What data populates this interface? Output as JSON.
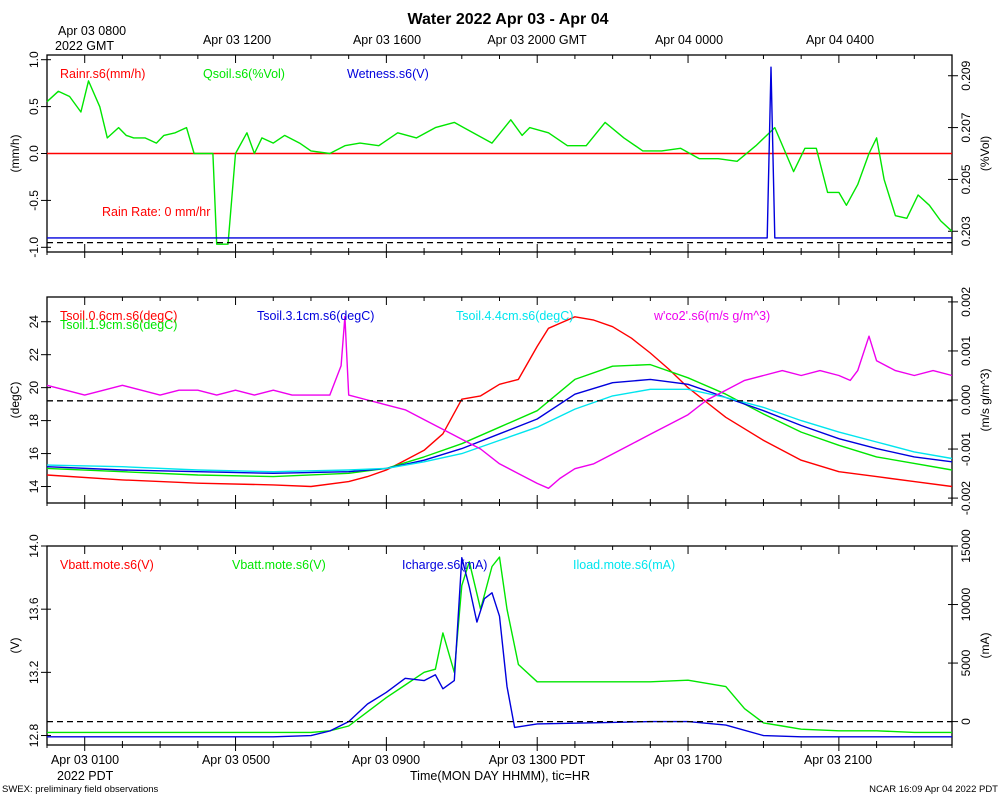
{
  "title": "Water 2022 Apr 03 - Apr 04",
  "top_axis": {
    "start_label_line1": "Apr 03 0800",
    "start_label_line2": "2022 GMT",
    "labels": [
      "Apr 03 1200",
      "Apr 03 1600",
      "Apr 03 2000 GMT",
      "Apr 04 0000",
      "Apr 04 0400"
    ]
  },
  "bottom_axis": {
    "labels": [
      "Apr 03 0100",
      "Apr 03 0500",
      "Apr 03 0900",
      "Apr 03 1300 PDT",
      "Apr 03 1700",
      "Apr 03 2100"
    ],
    "year_label": "2022 PDT",
    "xlabel": "Time(MON DAY HHMM), tic=HR"
  },
  "footer": {
    "left": "SWEX: preliminary field observations",
    "right": "NCAR 16:09 Apr 04 2022 PDT"
  },
  "colors": {
    "red": "#ff0000",
    "green": "#00e600",
    "blue": "#0000dd",
    "cyan": "#00e5ee",
    "magenta": "#ee00ee",
    "black": "#000000"
  },
  "chart_data": [
    {
      "type": "line",
      "panel": "water",
      "x_units": "hours since Apr 03 0000 PDT",
      "xlim": [
        0,
        24
      ],
      "ylabel_left": "(mm/h)",
      "ylabel_right": "(%Vol)",
      "ylim_left": [
        -1.05,
        1.05
      ],
      "ylim_right": [
        0.2022,
        0.2098
      ],
      "yticks_left": [
        "1.0",
        "0.5",
        "0.0",
        "-0.5",
        "-1.0"
      ],
      "yticks_left_values": [
        1.0,
        0.5,
        0.0,
        -0.5,
        -1.0
      ],
      "yticks_right": [
        "0.209",
        "0.207",
        "0.205",
        "0.203"
      ],
      "yticks_right_values": [
        0.209,
        0.207,
        0.205,
        0.203
      ],
      "legend": [
        "Rainr.s6(mm/h)",
        "Qsoil.s6(%Vol)",
        "Wetness.s6(V)"
      ],
      "annotation": "Rain Rate: 0 mm/hr",
      "series": [
        {
          "name": "Rainr.s6(mm/h)",
          "color": "red",
          "axis": "left",
          "x": [
            0,
            24
          ],
          "y": [
            0,
            0
          ]
        },
        {
          "name": "Qsoil.s6(%Vol)",
          "color": "green",
          "axis": "right",
          "x": [
            0.0,
            0.3,
            0.6,
            0.9,
            1.1,
            1.4,
            1.6,
            1.9,
            2.1,
            2.3,
            2.6,
            2.9,
            3.1,
            3.4,
            3.7,
            3.9,
            4.4,
            4.5,
            4.7,
            4.8,
            5.0,
            5.3,
            5.5,
            5.7,
            6.0,
            6.3,
            6.7,
            7.0,
            7.5,
            7.9,
            8.3,
            8.8,
            9.3,
            9.8,
            10.3,
            10.8,
            11.3,
            11.8,
            12.3,
            12.6,
            12.8,
            13.3,
            13.8,
            14.3,
            14.8,
            15.3,
            15.8,
            16.3,
            16.8,
            17.3,
            17.8,
            18.3,
            18.8,
            19.3,
            19.8,
            20.1,
            20.4,
            20.7,
            21.0,
            21.2,
            21.5,
            21.8,
            22.0,
            22.2,
            22.5,
            22.8,
            23.1,
            23.4,
            23.7,
            24.0
          ],
          "y": [
            0.208,
            0.2084,
            0.2082,
            0.2076,
            0.2088,
            0.2078,
            0.2066,
            0.207,
            0.2067,
            0.2066,
            0.2066,
            0.2064,
            0.2067,
            0.2068,
            0.207,
            0.206,
            0.206,
            0.2025,
            0.2025,
            0.2025,
            0.206,
            0.2068,
            0.206,
            0.2066,
            0.2064,
            0.2067,
            0.2064,
            0.2061,
            0.206,
            0.2063,
            0.2064,
            0.2063,
            0.2068,
            0.2066,
            0.207,
            0.2072,
            0.2068,
            0.2064,
            0.2073,
            0.2067,
            0.207,
            0.2068,
            0.2063,
            0.2063,
            0.2072,
            0.2066,
            0.2061,
            0.2061,
            0.2062,
            0.2058,
            0.2058,
            0.2057,
            0.2063,
            0.207,
            0.2053,
            0.2062,
            0.2062,
            0.2045,
            0.2045,
            0.204,
            0.2048,
            0.206,
            0.2066,
            0.205,
            0.2036,
            0.2035,
            0.2044,
            0.204,
            0.2034,
            0.203
          ]
        },
        {
          "name": "Wetness.s6(V)",
          "color": "blue",
          "axis": "left",
          "x": [
            0,
            19.0,
            19.1,
            19.2,
            19.3,
            19.4,
            24
          ],
          "y": [
            -0.9,
            -0.9,
            -0.9,
            0.92,
            -0.9,
            -0.9,
            -0.9
          ]
        }
      ],
      "reference_lines": [
        {
          "axis": "left",
          "y": -0.95,
          "style": "dashed"
        }
      ]
    },
    {
      "type": "line",
      "panel": "soil temperature",
      "x_units": "hours since Apr 03 0000 PDT",
      "xlim": [
        0,
        24
      ],
      "ylabel_left": "(degC)",
      "ylabel_right": "(m/s g/m^3)",
      "ylim_left": [
        13.0,
        25.5
      ],
      "ylim_right": [
        -0.0021,
        0.0021
      ],
      "yticks_left": [
        "24",
        "22",
        "20",
        "18",
        "16",
        "14"
      ],
      "yticks_left_values": [
        24,
        22,
        20,
        18,
        16,
        14
      ],
      "yticks_right": [
        "0.002",
        "0.001",
        "0.000",
        "-0.001",
        "-0.002"
      ],
      "yticks_right_values": [
        0.002,
        0.001,
        0.0,
        -0.001,
        -0.002
      ],
      "legend": [
        "Tsoil.0.6cm.s6(degC)",
        "Tsoil.1.9cm.s6(degC)",
        "Tsoil.3.1cm.s6(degC)",
        "Tsoil.4.4cm.s6(degC)",
        "w'co2'.s6(m/s g/m^3)"
      ],
      "series": [
        {
          "name": "Tsoil.0.6cm.s6(degC)",
          "color": "red",
          "axis": "left",
          "x": [
            0,
            2,
            4,
            6,
            7,
            8,
            8.5,
            9,
            9.5,
            10,
            10.5,
            11,
            11.5,
            12,
            12.5,
            13,
            13.3,
            13.6,
            14,
            14.5,
            15,
            15.5,
            16,
            16.5,
            17,
            17.5,
            18,
            19,
            20,
            21,
            22,
            23,
            24
          ],
          "y": [
            14.7,
            14.4,
            14.2,
            14.1,
            14.0,
            14.3,
            14.6,
            15.0,
            15.6,
            16.2,
            17.2,
            19.3,
            19.5,
            20.2,
            20.5,
            22.5,
            23.6,
            23.9,
            24.3,
            24.1,
            23.7,
            23.0,
            22.1,
            21.1,
            20.0,
            19.1,
            18.2,
            16.8,
            15.6,
            14.9,
            14.6,
            14.3,
            14.0
          ]
        },
        {
          "name": "Tsoil.1.9cm.s6(degC)",
          "color": "green",
          "axis": "left",
          "x": [
            0,
            2,
            4,
            6,
            8,
            9,
            10,
            11,
            12,
            13,
            14,
            15,
            16,
            17,
            18,
            19,
            20,
            21,
            22,
            23,
            24
          ],
          "y": [
            15.1,
            14.9,
            14.7,
            14.6,
            14.8,
            15.1,
            15.8,
            16.6,
            17.6,
            18.6,
            20.5,
            21.3,
            21.4,
            20.6,
            19.6,
            18.4,
            17.3,
            16.5,
            15.8,
            15.4,
            15.0
          ]
        },
        {
          "name": "Tsoil.3.1cm.s6(degC)",
          "color": "blue",
          "axis": "left",
          "x": [
            0,
            2,
            4,
            6,
            8,
            9,
            10,
            11,
            12,
            13,
            14,
            15,
            16,
            17,
            18,
            19,
            20,
            21,
            22,
            23,
            24
          ],
          "y": [
            15.2,
            15.0,
            14.9,
            14.8,
            14.9,
            15.1,
            15.6,
            16.3,
            17.2,
            18.1,
            19.6,
            20.3,
            20.5,
            20.2,
            19.4,
            18.6,
            17.7,
            16.9,
            16.3,
            15.8,
            15.5
          ]
        },
        {
          "name": "Tsoil.4.4cm.s6(degC)",
          "color": "cyan",
          "axis": "left",
          "x": [
            0,
            2,
            4,
            6,
            8,
            9,
            10,
            11,
            12,
            13,
            14,
            15,
            16,
            17,
            18,
            19,
            20,
            21,
            22,
            23,
            24
          ],
          "y": [
            15.3,
            15.2,
            15.0,
            14.9,
            15.0,
            15.1,
            15.5,
            16.0,
            16.8,
            17.6,
            18.7,
            19.5,
            19.9,
            19.9,
            19.4,
            18.8,
            18.0,
            17.3,
            16.7,
            16.1,
            15.7
          ]
        },
        {
          "name": "w'co2'.s6(m/s g/m^3)",
          "color": "magenta",
          "axis": "right",
          "x": [
            0,
            0.5,
            1,
            1.5,
            2,
            2.5,
            3,
            3.5,
            4,
            4.5,
            5,
            5.5,
            6,
            6.5,
            7,
            7.5,
            7.8,
            7.9,
            8.0,
            8.5,
            9,
            9.5,
            10,
            10.5,
            11,
            11.5,
            12,
            12.5,
            13,
            13.3,
            13.6,
            14,
            14.5,
            15,
            15.5,
            16,
            16.5,
            17,
            17.5,
            18,
            18.5,
            19,
            19.5,
            20,
            20.5,
            21,
            21.3,
            21.5,
            21.8,
            22,
            22.5,
            23,
            23.5,
            24
          ],
          "y": [
            0.0003,
            0.0002,
            0.0001,
            0.0002,
            0.0003,
            0.0002,
            0.0001,
            0.0002,
            0.0002,
            0.0001,
            0.0002,
            0.0001,
            0.0002,
            0.0001,
            0.0001,
            0.0001,
            0.0007,
            0.0017,
            0.0001,
            0.0,
            -0.0001,
            -0.0002,
            -0.0004,
            -0.0006,
            -0.0008,
            -0.001,
            -0.0013,
            -0.0015,
            -0.0017,
            -0.0018,
            -0.0016,
            -0.0014,
            -0.0013,
            -0.0011,
            -0.0009,
            -0.0007,
            -0.0005,
            -0.0003,
            0.0,
            0.0002,
            0.0004,
            0.0005,
            0.0006,
            0.0005,
            0.0006,
            0.0005,
            0.0004,
            0.0006,
            0.0013,
            0.0008,
            0.0006,
            0.0005,
            0.0006,
            0.0005
          ]
        }
      ],
      "reference_lines": [
        {
          "axis": "left",
          "y": 19.2,
          "style": "dashed"
        }
      ]
    },
    {
      "type": "line",
      "panel": "power",
      "x_units": "hours since Apr 03 0000 PDT",
      "xlim": [
        0,
        24
      ],
      "ylabel_left": "(V)",
      "ylabel_right": "(mA)",
      "ylim_left": [
        12.74,
        14.0
      ],
      "ylim_right": [
        -2000,
        15000
      ],
      "yticks_left": [
        "14.0",
        "13.6",
        "13.2",
        "12.8"
      ],
      "yticks_left_values": [
        14.0,
        13.6,
        13.2,
        12.8
      ],
      "yticks_right": [
        "15000",
        "10000",
        "5000",
        "0"
      ],
      "yticks_right_values": [
        15000,
        10000,
        5000,
        0
      ],
      "legend": [
        "Vbatt.mote.s6(V)",
        "Vbatt.mote.s6(V)",
        "Icharge.s6(mA)",
        "Iload.mote.s6(mA)"
      ],
      "series": [
        {
          "name": "Vbatt.mote.s6(V)",
          "color": "red",
          "axis": "left",
          "x": [],
          "y": []
        },
        {
          "name": "Vbatt.mote.s6(V)",
          "color": "green",
          "axis": "left",
          "x": [
            0,
            2,
            4,
            6,
            7,
            7.5,
            8,
            8.5,
            9,
            9.5,
            10,
            10.3,
            10.5,
            10.8,
            11,
            11.2,
            11.5,
            11.8,
            12,
            12.2,
            12.5,
            13,
            14,
            15,
            16,
            17,
            18,
            18.5,
            19,
            19.5,
            20,
            21,
            22,
            23,
            24
          ],
          "y": [
            12.82,
            12.82,
            12.82,
            12.82,
            12.82,
            12.83,
            12.86,
            12.95,
            13.04,
            13.12,
            13.2,
            13.22,
            13.45,
            13.2,
            13.75,
            13.9,
            13.6,
            13.87,
            13.93,
            13.6,
            13.25,
            13.14,
            13.14,
            13.14,
            13.14,
            13.15,
            13.11,
            12.97,
            12.88,
            12.86,
            12.84,
            12.83,
            12.83,
            12.82,
            12.82
          ]
        },
        {
          "name": "Icharge.s6(mA)",
          "color": "blue",
          "axis": "right",
          "x": [
            0,
            2,
            4,
            6,
            7,
            7.5,
            8,
            8.5,
            9,
            9.5,
            10,
            10.3,
            10.5,
            10.8,
            11,
            11.2,
            11.4,
            11.6,
            11.8,
            12.0,
            12.2,
            12.4,
            13,
            16,
            17,
            18,
            19,
            20,
            22,
            24
          ],
          "y": [
            -1300,
            -1300,
            -1300,
            -1300,
            -1200,
            -800,
            0,
            1500,
            2500,
            3700,
            3500,
            4000,
            2800,
            3500,
            14000,
            11500,
            8500,
            10500,
            11000,
            9000,
            3000,
            -500,
            -200,
            0,
            0,
            -300,
            -1200,
            -1300,
            -1300,
            -1300
          ]
        },
        {
          "name": "Iload.mote.s6(mA)",
          "color": "cyan",
          "axis": "right",
          "x": [],
          "y": []
        }
      ],
      "reference_lines": [
        {
          "axis": "right",
          "y": 0,
          "style": "dashed"
        }
      ]
    }
  ]
}
